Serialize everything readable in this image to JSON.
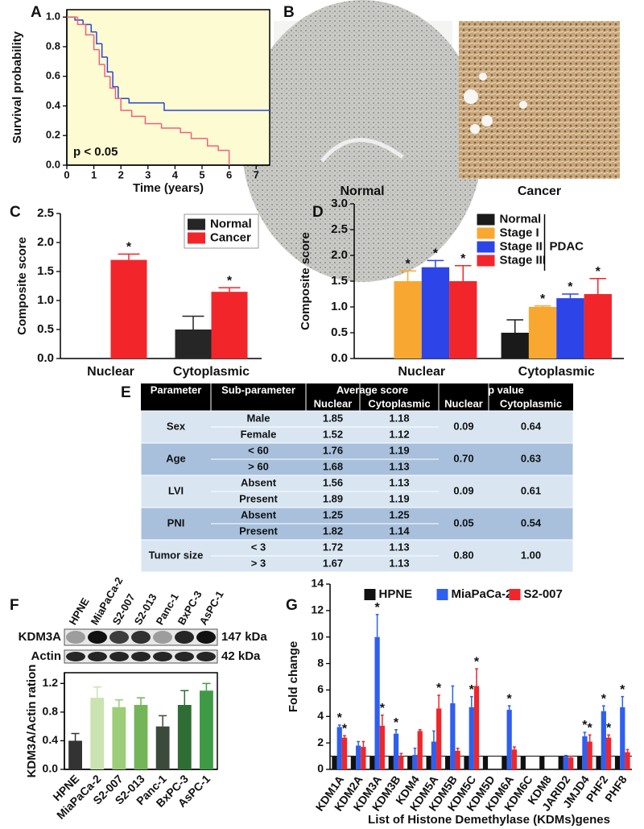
{
  "chart_data": [
    {
      "type": "line",
      "panel": "A",
      "xlabel": "Time (years)",
      "ylabel": "Survival probability",
      "annotation": "p < 0.05",
      "background": "#fdfbd2",
      "frame": true,
      "xlim": [
        0,
        7.5
      ],
      "xticks": [
        0,
        1,
        2,
        3,
        4,
        5,
        6,
        7
      ],
      "ylim": [
        0,
        1.05
      ],
      "yticks": [
        {
          "value": 0,
          "label": "0.0"
        },
        {
          "value": 0.2,
          "label": "0.2"
        },
        {
          "value": 0.4,
          "label": "0.4"
        },
        {
          "value": 0.6,
          "label": "0.6"
        },
        {
          "value": 0.8,
          "label": "0.8"
        },
        {
          "value": 1,
          "label": "1.0"
        }
      ],
      "series": [
        {
          "color": "#2a44d4",
          "x": [
            0,
            0.3,
            0.6,
            0.9,
            1.1,
            1.3,
            1.5,
            1.7,
            1.9,
            2.3,
            3.6,
            7.5
          ],
          "values": [
            1,
            0.98,
            0.95,
            0.9,
            0.82,
            0.73,
            0.63,
            0.53,
            0.45,
            0.42,
            0.37,
            0.37
          ]
        },
        {
          "color": "#f0607e",
          "x": [
            0,
            0.4,
            0.7,
            1.0,
            1.2,
            1.4,
            1.6,
            1.8,
            2.0,
            2.4,
            2.9,
            3.5,
            4.2,
            4.6,
            5.2,
            5.6,
            6.0
          ],
          "values": [
            1,
            0.95,
            0.88,
            0.78,
            0.68,
            0.6,
            0.52,
            0.45,
            0.37,
            0.33,
            0.28,
            0.25,
            0.22,
            0.18,
            0.13,
            0.1,
            0
          ]
        }
      ]
    },
    {
      "type": "bar",
      "panel": "C",
      "ylabel": "Composite score",
      "legend": "upper right",
      "categories": [
        "Nuclear",
        "Cytoplasmic"
      ],
      "ylim": [
        0,
        2.5
      ],
      "yticks": [
        {
          "value": 0,
          "label": "0.0"
        },
        {
          "value": 0.5,
          "label": "0.5"
        },
        {
          "value": 1,
          "label": "1.0"
        },
        {
          "value": 1.5,
          "label": "1.5"
        },
        {
          "value": 2,
          "label": "2.0"
        },
        {
          "value": 2.5,
          "label": "2.5"
        }
      ],
      "series": [
        {
          "name": "Normal",
          "color": "#262626",
          "values": [
            null,
            0.5
          ],
          "errors": [
            null,
            0.23
          ],
          "markers": [
            null,
            null
          ]
        },
        {
          "name": "Cancer",
          "color": "#f2262a",
          "values": [
            1.7,
            1.15
          ],
          "errors": [
            0.1,
            0.07
          ],
          "markers": [
            "*",
            "*"
          ]
        }
      ]
    },
    {
      "type": "bar",
      "panel": "D",
      "ylabel": "Composite score",
      "legend": "upper center",
      "legend_group": "PDAC",
      "categories": [
        "Nuclear",
        "Cytoplasmic"
      ],
      "ylim": [
        0,
        3
      ],
      "yticks": [
        {
          "value": 0,
          "label": "0.0"
        },
        {
          "value": 0.5,
          "label": "0.5"
        },
        {
          "value": 1,
          "label": "1.0"
        },
        {
          "value": 1.5,
          "label": "1.5"
        },
        {
          "value": 2,
          "label": "2.0"
        },
        {
          "value": 2.5,
          "label": "2.5"
        },
        {
          "value": 3,
          "label": "3.0"
        }
      ],
      "series": [
        {
          "name": "Normal",
          "color": "#1a1a1a",
          "values": [
            null,
            0.5
          ],
          "errors": [
            null,
            0.25
          ],
          "markers": [
            null,
            null
          ]
        },
        {
          "name": "Stage I",
          "color": "#f8a831",
          "values": [
            1.5,
            1.0
          ],
          "errors": [
            0.2,
            0.02
          ],
          "markers": [
            "*",
            "*"
          ]
        },
        {
          "name": "Stage II",
          "color": "#2c44e8",
          "values": [
            1.77,
            1.17
          ],
          "errors": [
            0.13,
            0.08
          ],
          "markers": [
            "*",
            "*"
          ]
        },
        {
          "name": "Stage III",
          "color": "#f2262a",
          "values": [
            1.5,
            1.25
          ],
          "errors": [
            0.3,
            0.3
          ],
          "markers": [
            "*",
            "*"
          ]
        }
      ]
    },
    {
      "type": "bar",
      "panel": "F",
      "ylabel": "KDM3A/Actin ration",
      "frame": true,
      "categories": [
        "HPNE",
        "MiaPaCa-2",
        "S2-007",
        "S2-013",
        "Panc-1",
        "BxPC-3",
        "AsPC-1"
      ],
      "ylim": [
        0,
        1.35
      ],
      "yticks": [
        {
          "value": 0,
          "label": "0.0"
        },
        {
          "value": 0.4,
          "label": "0.4"
        },
        {
          "value": 0.8,
          "label": "0.8"
        },
        {
          "value": 1.2,
          "label": "1.2"
        }
      ],
      "series": [
        {
          "colors": [
            "#333333",
            "#c9e4b0",
            "#9ccd78",
            "#74b557",
            "#3c4a3c",
            "#2e6e34",
            "#3f9a45"
          ],
          "values": [
            0.4,
            1.0,
            0.87,
            0.9,
            0.6,
            0.9,
            1.1
          ],
          "errors": [
            0.1,
            0.15,
            0.1,
            0.1,
            0.15,
            0.2,
            0.1
          ]
        }
      ]
    },
    {
      "type": "bar",
      "panel": "G",
      "ylabel": "Fold change",
      "xlabel": "List of Histone Demethylase (KDMs)genes",
      "legend": "upper center",
      "hline": 1,
      "categories": [
        "KDM1A",
        "KDM2A",
        "KDM3A",
        "KDM3B",
        "KDM4",
        "KDM5A",
        "KDM5B",
        "KDM5C",
        "KDM5D",
        "KDM6A",
        "KDM6C",
        "KDM8",
        "JARID2",
        "JMJD4",
        "PHF2",
        "PHF8"
      ],
      "ylim": [
        0,
        14
      ],
      "yticks": [
        0,
        2,
        4,
        6,
        8,
        10,
        12,
        14
      ],
      "series": [
        {
          "name": "HPNE",
          "color": "#111111",
          "values": [
            1,
            1,
            1,
            1,
            1,
            1,
            1,
            1,
            1,
            1,
            1,
            1,
            1,
            1,
            1,
            1
          ],
          "errors": [
            null,
            null,
            null,
            null,
            null,
            null,
            null,
            null,
            null,
            null,
            null,
            null,
            null,
            null,
            null,
            null
          ],
          "markers": [
            null,
            null,
            null,
            null,
            null,
            null,
            null,
            null,
            null,
            null,
            null,
            null,
            null,
            null,
            null,
            null
          ]
        },
        {
          "name": "MiaPaCa-2",
          "color": "#2f5ff0",
          "values": [
            3.2,
            1.8,
            10.0,
            2.7,
            1.1,
            2.1,
            5.0,
            4.7,
            null,
            4.5,
            null,
            null,
            0.95,
            2.5,
            4.4,
            4.7
          ],
          "errors": [
            0.15,
            0.3,
            1.7,
            0.3,
            0.5,
            0.8,
            1.3,
            0.8,
            null,
            0.3,
            null,
            null,
            0.1,
            0.3,
            0.4,
            0.8
          ],
          "markers": [
            "*",
            null,
            "*",
            "*",
            null,
            null,
            null,
            "*",
            null,
            "*",
            null,
            null,
            null,
            "*",
            "*",
            "*"
          ]
        },
        {
          "name": "S2-007",
          "color": "#f0262a",
          "values": [
            2.4,
            1.7,
            3.3,
            1.0,
            2.9,
            4.6,
            1.4,
            6.3,
            null,
            1.5,
            null,
            null,
            0.9,
            2.1,
            2.4,
            1.3
          ],
          "errors": [
            0.15,
            0.4,
            0.8,
            0.2,
            0.1,
            1.0,
            0.2,
            1.3,
            null,
            0.2,
            null,
            null,
            0.1,
            0.5,
            0.2,
            0.2
          ],
          "markers": [
            "*",
            null,
            "*",
            null,
            null,
            "*",
            null,
            "*",
            null,
            null,
            null,
            null,
            null,
            "*",
            "*",
            null
          ]
        }
      ]
    }
  ],
  "images": {
    "panel": "B",
    "captions": [
      "Normal",
      "Cancer"
    ]
  },
  "table": {
    "panel": "E",
    "header": [
      "Parameter",
      "Sub-parameter",
      "Average score",
      "p value"
    ],
    "subheader": [
      "Nuclear",
      "Cytoplasmic",
      "Nuclear",
      "Cytoplasmic"
    ],
    "groups": [
      {
        "parameter": "Sex",
        "rows": [
          [
            "Male",
            "1.85",
            "1.18"
          ],
          [
            "Female",
            "1.52",
            "1.12"
          ]
        ],
        "p": [
          "0.09",
          "0.64"
        ]
      },
      {
        "parameter": "Age",
        "rows": [
          [
            "< 60",
            "1.76",
            "1.19"
          ],
          [
            "> 60",
            "1.68",
            "1.13"
          ]
        ],
        "p": [
          "0.70",
          "0.63"
        ]
      },
      {
        "parameter": "LVI",
        "rows": [
          [
            "Absent",
            "1.56",
            "1.13"
          ],
          [
            "Present",
            "1.89",
            "1.19"
          ]
        ],
        "p": [
          "0.09",
          "0.61"
        ]
      },
      {
        "parameter": "PNI",
        "rows": [
          [
            "Absent",
            "1.25",
            "1.25"
          ],
          [
            "Present",
            "1.82",
            "1.14"
          ]
        ],
        "p": [
          "0.05",
          "0.54"
        ]
      },
      {
        "parameter": "Tumor size",
        "rows": [
          [
            "< 3",
            "1.72",
            "1.13"
          ],
          [
            "> 3",
            "1.67",
            "1.13"
          ]
        ],
        "p": [
          "0.80",
          "1.00"
        ]
      }
    ]
  },
  "blot": {
    "lanes": [
      "HPNE",
      "MiaPaCa-2",
      "S2-007",
      "S2-013",
      "Panc-1",
      "BxPC-3",
      "AsPC-1"
    ],
    "rows": [
      {
        "name": "KDM3A",
        "size": "147 kDa"
      },
      {
        "name": "Actin",
        "size": "42 kDa"
      }
    ]
  }
}
